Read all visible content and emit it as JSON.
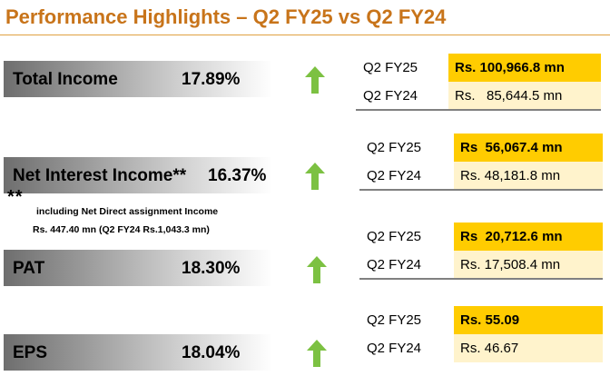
{
  "title": "Performance Highlights – Q2 FY25 vs Q2 FY24",
  "icons": {
    "arrow": "arrow-up-icon",
    "arrow_color": "#7cc142"
  },
  "colors": {
    "title": "#c8741a",
    "current_cell": "#ffcc00",
    "previous_cell": "#fff3cc"
  },
  "metrics": [
    {
      "label": "Total Income",
      "growth": "17.89%",
      "current_period": "Q2 FY25",
      "current_value": "Rs. 100,966.8 mn",
      "previous_period": "Q2 FY24",
      "previous_value": "Rs.   85,644.5 mn"
    },
    {
      "label": "Net Interest Income**",
      "growth": "16.37%",
      "current_period": "Q2 FY25",
      "current_value": "Rs  56,067.4 mn",
      "previous_period": "Q2 FY24",
      "previous_value": "Rs. 48,181.8 mn"
    },
    {
      "label": "PAT",
      "growth": "18.30%",
      "current_period": "Q2 FY25",
      "current_value": "Rs  20,712.6 mn",
      "previous_period": "Q2 FY24",
      "previous_value": "Rs. 17,508.4 mn"
    },
    {
      "label": "EPS",
      "growth": "18.04%",
      "current_period": "Q2 FY25",
      "current_value": "Rs. 55.09",
      "previous_period": "Q2 FY24",
      "previous_value": "Rs. 46.67"
    }
  ],
  "footnote": {
    "marker": "**",
    "line1": "including Net Direct assignment Income",
    "line2": "Rs. 447.40 mn (Q2 FY24 Rs.1,043.3 mn)"
  }
}
